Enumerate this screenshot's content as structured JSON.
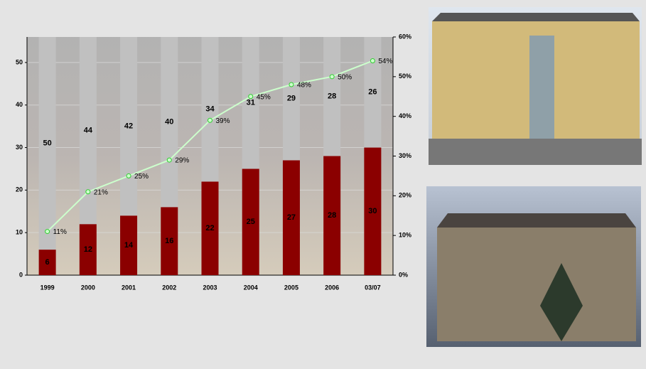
{
  "chart_data": {
    "type": "bar",
    "categories": [
      "1999",
      "2000",
      "2001",
      "2002",
      "2003",
      "2004",
      "2005",
      "2006",
      "03/07"
    ],
    "series": [
      {
        "color": "#8b0000",
        "values": [
          6,
          12,
          14,
          16,
          22,
          25,
          27,
          28,
          30
        ]
      },
      {
        "color": "#c0c0c0",
        "values": [
          50,
          44,
          42,
          40,
          34,
          31,
          29,
          28,
          26
        ]
      },
      {
        "color": "#ccffcc",
        "axis": "y2",
        "values": [
          11,
          21,
          25,
          29,
          39,
          45,
          48,
          50,
          54
        ],
        "value_labels": [
          "11%",
          "21%",
          "25%",
          "29%",
          "39%",
          "45%",
          "48%",
          "50%",
          "54%"
        ]
      }
    ],
    "stacked": true,
    "ylim": [
      0,
      56
    ],
    "yticks": [
      0,
      10,
      20,
      30,
      40,
      50
    ],
    "y2lim": [
      0,
      60
    ],
    "y2ticks": [
      {
        "value": 0,
        "label": "0%"
      },
      {
        "value": 10,
        "label": "10%"
      },
      {
        "value": 20,
        "label": "20%"
      },
      {
        "value": 30,
        "label": "30%"
      },
      {
        "value": 40,
        "label": "40%"
      },
      {
        "value": 50,
        "label": "50%"
      },
      {
        "value": 60,
        "label": "60%"
      }
    ],
    "grid": true
  }
}
